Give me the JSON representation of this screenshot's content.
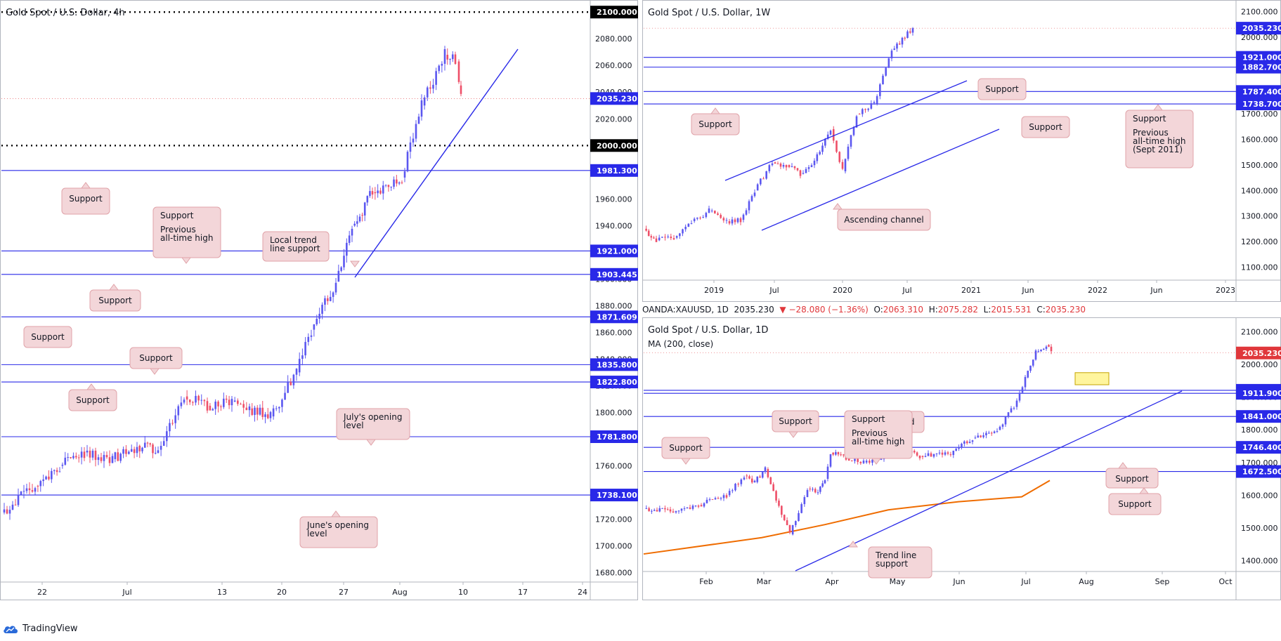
{
  "app": {
    "brand": "TradingView"
  },
  "ohlc_bar": {
    "symbol": "OANDA:XAUUSD, 1D",
    "last": "2035.230",
    "change": "▼ −28.080 (−1.36%)",
    "o_label": "O:",
    "o": "2063.310",
    "h_label": "H:",
    "h": "2075.282",
    "l_label": "L:",
    "l": "2015.531",
    "c_label": "C:",
    "c": "2035.230"
  },
  "colors": {
    "level_line": "#2929e8",
    "up": "#5b57f0",
    "down": "#ee4f68",
    "ma": "#ef6c00",
    "label_fill": "#f3d6d9",
    "label_border": "#e0a3a9"
  },
  "chart_data": [
    {
      "id": "h4",
      "type": "candlestick",
      "title": "Gold Spot / U.S. Dollar, 4h",
      "ylim": [
        1675,
        2108
      ],
      "y_ticks": [
        "1680.000",
        "1700.000",
        "1720.000",
        "1740.000",
        "1760.000",
        "1780.000",
        "1800.000",
        "1820.000",
        "1840.000",
        "1860.000",
        "1880.000",
        "1900.000",
        "1920.000",
        "1940.000",
        "1960.000",
        "1980.000",
        "2000.000",
        "2020.000",
        "2040.000",
        "2060.000",
        "2080.000"
      ],
      "x_labels": [
        "22",
        "Jul",
        "13",
        "20",
        "27",
        "Aug",
        "10",
        "17",
        "24"
      ],
      "price_series": [
        [
          "Jun 16",
          1725
        ],
        [
          "Jun 19",
          1745
        ],
        [
          "Jun 22",
          1760
        ],
        [
          "Jun 25",
          1770
        ],
        [
          "Jun 29",
          1765
        ],
        [
          "Jul 2",
          1775
        ],
        [
          "Jul 6",
          1772
        ],
        [
          "Jul 8",
          1812
        ],
        [
          "Jul 10",
          1805
        ],
        [
          "Jul 14",
          1808
        ],
        [
          "Jul 16",
          1803
        ],
        [
          "Jul 17",
          1797
        ],
        [
          "Jul 21",
          1830
        ],
        [
          "Jul 22",
          1862
        ],
        [
          "Jul 24",
          1898
        ],
        [
          "Jul 27",
          1940
        ],
        [
          "Jul 28",
          1948
        ],
        [
          "Jul 30",
          1965
        ],
        [
          "Aug 3",
          1976
        ],
        [
          "Aug 4",
          2030
        ],
        [
          "Aug 6",
          2068
        ],
        [
          "Aug 7",
          2063
        ],
        [
          "Aug 7b",
          2045
        ],
        [
          "Aug 7c",
          2035
        ]
      ],
      "levels": [
        {
          "value": 2100.0,
          "label": "2100.000",
          "style": "dotted"
        },
        {
          "value": 2000.0,
          "label": "2000.000",
          "style": "dotted"
        },
        {
          "value": 1981.3,
          "label": "1981.300",
          "style": "solid"
        },
        {
          "value": 1921.0,
          "label": "1921.000",
          "style": "solid"
        },
        {
          "value": 1903.445,
          "label": "1903.445",
          "style": "solid"
        },
        {
          "value": 1871.609,
          "label": "1871.609",
          "style": "solid"
        },
        {
          "value": 1835.8,
          "label": "1835.800",
          "style": "solid"
        },
        {
          "value": 1822.8,
          "label": "1822.800",
          "style": "solid"
        },
        {
          "value": 1781.8,
          "label": "1781.800",
          "style": "solid"
        },
        {
          "value": 1738.1,
          "label": "1738.100",
          "style": "solid"
        }
      ],
      "last_price": {
        "value": 2035.23,
        "label": "2035.230"
      },
      "annotations": [
        {
          "lines": [
            "Support"
          ]
        },
        {
          "lines": [
            "Support",
            "Previous",
            "all-time high"
          ]
        },
        {
          "lines": [
            "Local trend",
            "line support"
          ]
        },
        {
          "lines": [
            "Support"
          ]
        },
        {
          "lines": [
            "Support"
          ]
        },
        {
          "lines": [
            "Support"
          ]
        },
        {
          "lines": [
            "Support"
          ]
        },
        {
          "lines": [
            "July's opening",
            "level"
          ]
        },
        {
          "lines": [
            "June's opening",
            "level"
          ]
        }
      ]
    },
    {
      "id": "w1",
      "type": "candlestick",
      "title": "Gold Spot / U.S. Dollar, 1W",
      "ylim": [
        1060,
        2140
      ],
      "y_ticks": [
        "1100.000",
        "1200.000",
        "1300.000",
        "1400.000",
        "1500.000",
        "1600.000",
        "1700.000",
        "1800.000",
        "1900.000",
        "2000.000",
        "2100.000"
      ],
      "x_labels": [
        "2019",
        "Jul",
        "2020",
        "Jul",
        "2021",
        "Jun",
        "2022",
        "Jun",
        "2023"
      ],
      "price_series": [
        [
          "2018-06",
          1250
        ],
        [
          "2018-08",
          1205
        ],
        [
          "2018-10",
          1215
        ],
        [
          "2018-12",
          1280
        ],
        [
          "2019-02",
          1320
        ],
        [
          "2019-04",
          1280
        ],
        [
          "2019-05",
          1285
        ],
        [
          "2019-06",
          1400
        ],
        [
          "2019-08",
          1510
        ],
        [
          "2019-09",
          1500
        ],
        [
          "2019-11",
          1465
        ],
        [
          "2019-12",
          1515
        ],
        [
          "2020-02",
          1640
        ],
        [
          "2020-03",
          1475
        ],
        [
          "2020-04",
          1700
        ],
        [
          "2020-06",
          1740
        ],
        [
          "2020-07",
          1950
        ],
        [
          "2020-08",
          2035
        ]
      ],
      "levels": [
        {
          "value": 1921.0,
          "label": "1921.000"
        },
        {
          "value": 1882.7,
          "label": "1882.700"
        },
        {
          "value": 1787.4,
          "label": "1787.400"
        },
        {
          "value": 1738.7,
          "label": "1738.700"
        }
      ],
      "last_price": {
        "value": 2035.23,
        "label": "2035.230"
      },
      "annotations": [
        {
          "lines": [
            "Support"
          ]
        },
        {
          "lines": [
            "Support"
          ]
        },
        {
          "lines": [
            "Support"
          ]
        },
        {
          "lines": [
            "Support",
            "Previous",
            "all-time high",
            "(Sept 2011)"
          ]
        },
        {
          "lines": [
            "Ascending channel"
          ]
        }
      ]
    },
    {
      "id": "d1",
      "type": "candlestick",
      "title": "Gold Spot / U.S. Dollar, 1D",
      "indicator": "MA (200, close)",
      "ylim": [
        1375,
        2140
      ],
      "y_ticks": [
        "1400.000",
        "1500.000",
        "1600.000",
        "1700.000",
        "1800.000",
        "1900.000",
        "2000.000",
        "2100.000"
      ],
      "x_labels": [
        "Feb",
        "Mar",
        "Apr",
        "May",
        "Jun",
        "Jul",
        "Aug",
        "Sep",
        "Oct"
      ],
      "price_series": [
        [
          "Jan 06",
          1560
        ],
        [
          "Jan 20",
          1550
        ],
        [
          "Feb 03",
          1570
        ],
        [
          "Feb 17",
          1600
        ],
        [
          "Feb 24",
          1660
        ],
        [
          "Mar 02",
          1640
        ],
        [
          "Mar 09",
          1680
        ],
        [
          "Mar 16",
          1480
        ],
        [
          "Mar 23",
          1620
        ],
        [
          "Mar 30",
          1610
        ],
        [
          "Apr 07",
          1650
        ],
        [
          "Apr 14",
          1730
        ],
        [
          "Apr 21",
          1715
        ],
        [
          "Apr 28",
          1700
        ],
        [
          "May 05",
          1710
        ],
        [
          "May 18",
          1750
        ],
        [
          "Jun 01",
          1720
        ],
        [
          "Jun 15",
          1725
        ],
        [
          "Jul 01",
          1775
        ],
        [
          "Jul 10",
          1800
        ],
        [
          "Jul 22",
          1870
        ],
        [
          "Jul 28",
          1960
        ],
        [
          "Aug 04",
          2040
        ],
        [
          "Aug 06",
          2060
        ],
        [
          "Aug 07",
          2035
        ]
      ],
      "moving_average": [
        [
          "Jan 06",
          1420
        ],
        [
          "Mar 01",
          1470
        ],
        [
          "Apr 01",
          1510
        ],
        [
          "May 01",
          1555
        ],
        [
          "Jun 01",
          1580
        ],
        [
          "Jul 01",
          1595
        ],
        [
          "Aug 07",
          1645
        ]
      ],
      "levels": [
        {
          "value": 1921.0,
          "label": "1921.000"
        },
        {
          "value": 1911.9,
          "label": "1911.900"
        },
        {
          "value": 1841.0,
          "label": "1841.000"
        },
        {
          "value": 1746.4,
          "label": "1746.400"
        },
        {
          "value": 1672.5,
          "label": "1672.500"
        }
      ],
      "last_price": {
        "value": 2035.23,
        "label": "2035.230"
      },
      "demand_zone": [
        1938,
        1975
      ],
      "annotations": [
        {
          "lines": [
            "Demand"
          ]
        },
        {
          "lines": [
            "Support"
          ]
        },
        {
          "lines": [
            "Support",
            "Previous",
            "all-time high"
          ]
        },
        {
          "lines": [
            "Support"
          ]
        },
        {
          "lines": [
            "Trend line",
            "support"
          ]
        },
        {
          "lines": [
            "Support"
          ]
        },
        {
          "lines": [
            "Support"
          ]
        }
      ]
    }
  ]
}
